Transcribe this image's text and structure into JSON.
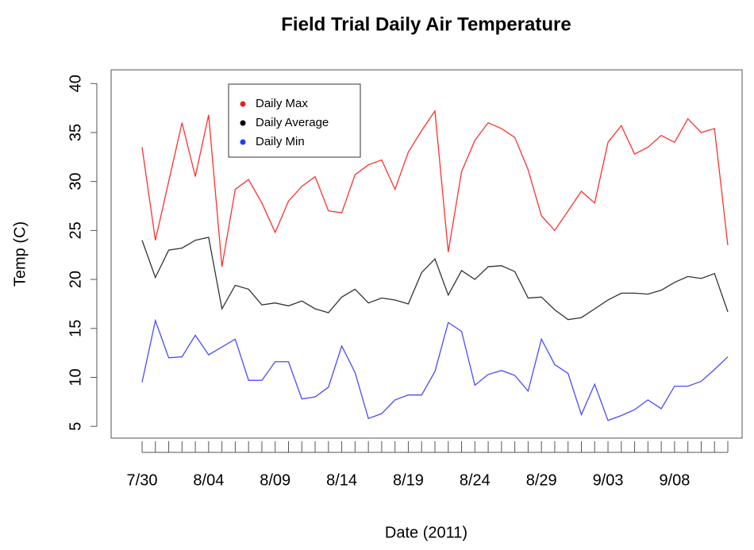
{
  "chart_data": {
    "type": "line",
    "title": "Field Trial Daily Air Temperature",
    "x_label": "Date (2011)",
    "y_label": "Temp (C)",
    "categories": [
      "7/30",
      null,
      null,
      null,
      null,
      "8/04",
      null,
      null,
      null,
      null,
      "8/09",
      null,
      null,
      null,
      null,
      "8/14",
      null,
      null,
      null,
      null,
      "8/19",
      null,
      null,
      null,
      null,
      "8/24",
      null,
      null,
      null,
      null,
      "8/29",
      null,
      null,
      null,
      null,
      "9/03",
      null,
      null,
      null,
      null,
      "9/08",
      null,
      null,
      null,
      null
    ],
    "series": [
      {
        "name": "Daily Max",
        "color": "#ff3030",
        "legend_color": "#e8221a",
        "values": [
          33.5,
          24,
          30,
          36,
          30.5,
          36.8,
          21.3,
          29.2,
          30.2,
          27.8,
          24.8,
          28,
          29.5,
          30.5,
          27,
          26.8,
          30.7,
          31.7,
          32.2,
          29.2,
          33,
          35.2,
          37.2,
          22.8,
          31,
          34.2,
          36,
          35.4,
          34.5,
          31.2,
          26.5,
          25,
          27,
          29,
          27.8,
          34,
          35.7,
          32.8,
          33.5,
          34.7,
          34,
          36.4,
          35,
          35.4,
          23.5
        ]
      },
      {
        "name": "Daily Average",
        "color": "#333333",
        "legend_color": "#000000",
        "values": [
          24,
          20.2,
          23,
          23.2,
          24,
          24.3,
          17,
          19.4,
          19,
          17.4,
          17.6,
          17.3,
          17.8,
          17,
          16.6,
          18.2,
          19,
          17.6,
          18.1,
          17.9,
          17.5,
          20.7,
          22.1,
          18.4,
          20.9,
          20,
          21.3,
          21.4,
          20.8,
          18.1,
          18.2,
          16.9,
          15.9,
          16.1,
          17,
          17.9,
          18.6,
          18.6,
          18.5,
          18.9,
          19.7,
          20.3,
          20.1,
          20.6,
          16.7
        ]
      },
      {
        "name": "Daily Min",
        "color": "#4a4aff",
        "legend_color": "#1a3cff",
        "values": [
          9.5,
          15.8,
          12,
          12.1,
          14.3,
          12.3,
          13.1,
          13.9,
          9.7,
          9.7,
          11.6,
          11.6,
          7.8,
          8,
          9,
          13.2,
          10.5,
          5.8,
          6.3,
          7.7,
          8.2,
          8.2,
          10.6,
          15.6,
          14.7,
          9.2,
          10.3,
          10.7,
          10.2,
          8.6,
          13.9,
          11.3,
          10.4,
          6.2,
          9.3,
          5.6,
          6.1,
          6.7,
          7.7,
          6.8,
          9.1,
          9.1,
          9.6,
          10.8,
          12.1
        ]
      }
    ],
    "ylim": [
      3.8,
      41.4
    ],
    "yticks": [
      5,
      10,
      15,
      20,
      25,
      30,
      35,
      40
    ],
    "legend": "top-left"
  }
}
